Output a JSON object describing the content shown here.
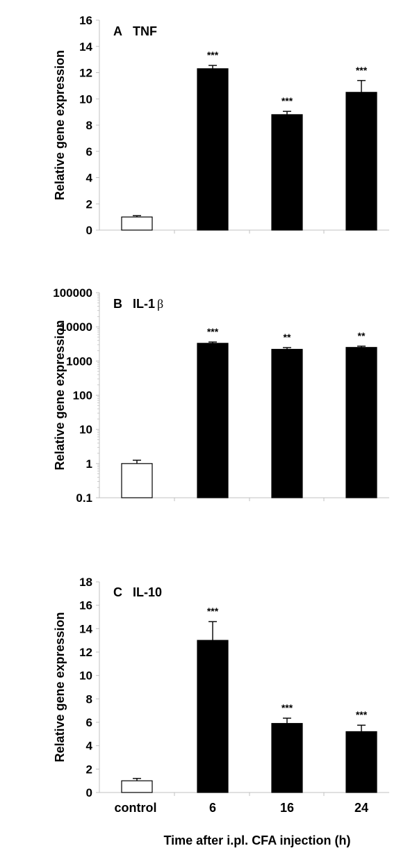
{
  "figure": {
    "xlabel": "Time after i.pl. CFA injection (h)",
    "categories": [
      "control",
      "6",
      "16",
      "24"
    ]
  },
  "colors": {
    "control_fill": "#ffffff",
    "treated_fill": "#000000",
    "axis": "#c0c0c0",
    "outline": "#000000"
  },
  "chart_data": [
    {
      "type": "bar",
      "panel": "A",
      "title": "A   TNF",
      "gene": "TNF",
      "scale": "linear",
      "xlabel": "",
      "ylabel": "Relative gene expression",
      "ylim": [
        0,
        16
      ],
      "yticks": [
        0,
        2,
        4,
        6,
        8,
        10,
        12,
        14,
        16
      ],
      "categories": [
        "control",
        "6",
        "16",
        "24"
      ],
      "values": [
        1.0,
        12.3,
        8.8,
        10.5
      ],
      "errors": [
        0.1,
        0.25,
        0.25,
        0.9
      ],
      "significance": [
        "",
        "***",
        "***",
        "***"
      ],
      "grid": false
    },
    {
      "type": "bar",
      "panel": "B",
      "title": "B   IL-1",
      "title_suffix": "β",
      "gene": "IL-1β",
      "scale": "log",
      "xlabel": "",
      "ylabel": "Relative gene expression",
      "ylim": [
        0.1,
        100000
      ],
      "yticks": [
        0.1,
        1,
        10,
        100,
        1000,
        10000,
        100000
      ],
      "ytick_labels": [
        "0.1",
        "1",
        "10",
        "100",
        "1000",
        "10000",
        "100000"
      ],
      "categories": [
        "control",
        "6",
        "16",
        "24"
      ],
      "values": [
        1.0,
        3300,
        2200,
        2500
      ],
      "errors": [
        0.25,
        300,
        270,
        220
      ],
      "significance": [
        "",
        "***",
        "**",
        "**"
      ],
      "grid": false
    },
    {
      "type": "bar",
      "panel": "C",
      "title": "C   IL-10",
      "gene": "IL-10",
      "scale": "linear",
      "xlabel": "Time after i.pl. CFA injection (h)",
      "ylabel": "Relative gene expression",
      "ylim": [
        0,
        18
      ],
      "yticks": [
        0,
        2,
        4,
        6,
        8,
        10,
        12,
        14,
        16,
        18
      ],
      "categories": [
        "control",
        "6",
        "16",
        "24"
      ],
      "values": [
        1.0,
        13.0,
        5.9,
        5.2
      ],
      "errors": [
        0.2,
        1.6,
        0.45,
        0.55
      ],
      "significance": [
        "",
        "***",
        "***",
        "***"
      ],
      "grid": false
    }
  ]
}
